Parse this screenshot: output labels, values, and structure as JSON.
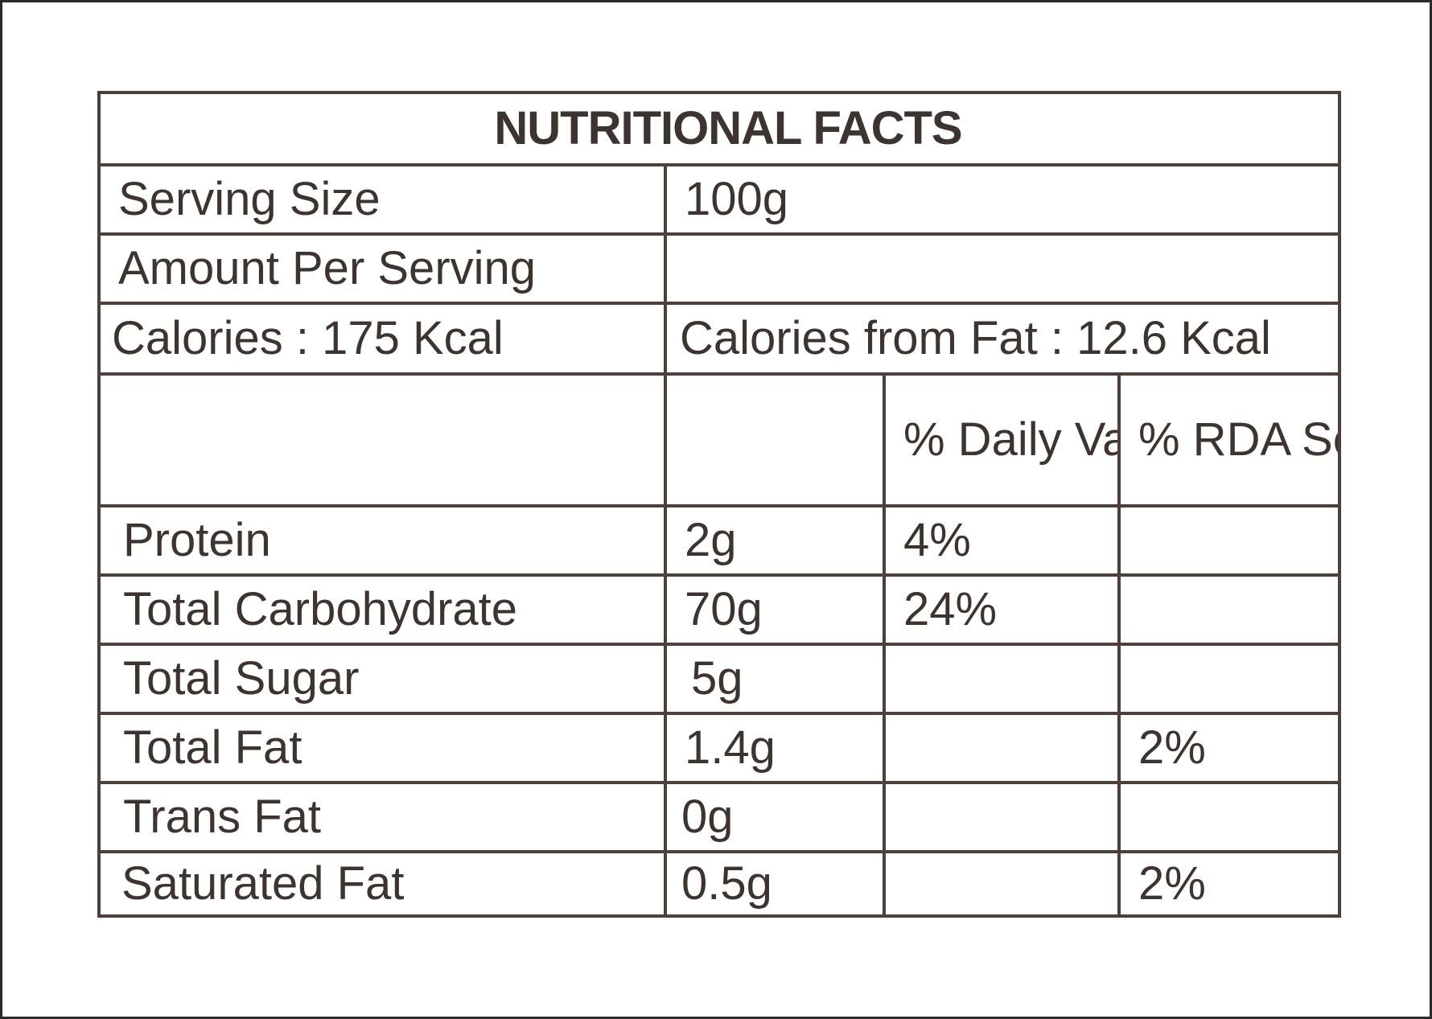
{
  "label": {
    "title": "NUTRITIONAL FACTS",
    "serving_size_label": "Serving Size",
    "serving_size_value": "100g",
    "amount_per_serving_label": "Amount Per Serving",
    "calories": "Calories : 175 Kcal",
    "calories_from_fat": "Calories from Fat : 12.6 Kcal",
    "columns": {
      "daily_value": "% Daily Value",
      "rda_serve": "% RDA Serve"
    },
    "rows": [
      {
        "name": "Protein",
        "amount": "2g",
        "daily_value": "4%",
        "rda": ""
      },
      {
        "name": "Total Carbohydrate",
        "amount": "70g",
        "daily_value": "24%",
        "rda": ""
      },
      {
        "name": "Total Sugar",
        "amount": "5g",
        "daily_value": "",
        "rda": ""
      },
      {
        "name": "Total Fat",
        "amount": "1.4g",
        "daily_value": "",
        "rda": "2%"
      },
      {
        "name": "Trans Fat",
        "amount": "0g",
        "daily_value": "",
        "rda": ""
      },
      {
        "name": "Saturated Fat",
        "amount": "0.5g",
        "daily_value": "",
        "rda": "2%"
      }
    ]
  },
  "colors": {
    "border": "#4e3f3c",
    "text": "#3d3331",
    "frame": "#2a2a2a"
  }
}
